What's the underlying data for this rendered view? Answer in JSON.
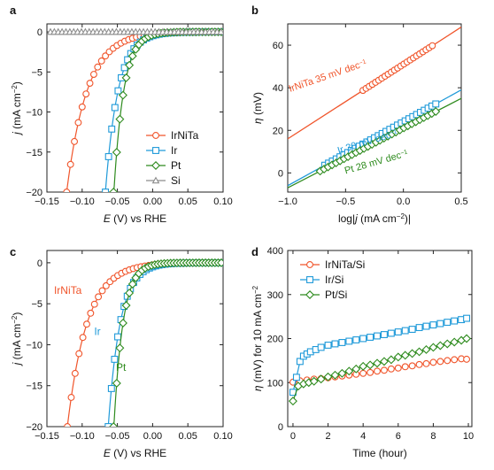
{
  "colors": {
    "irnita": "#f0552b",
    "ir": "#1f9ad9",
    "pt": "#2e8b1e",
    "si": "#8c8c8c"
  },
  "chart_data": [
    {
      "id": "a",
      "type": "line",
      "letter": "a",
      "xlabel_italic": "E",
      "xlabel_rest": " (V) vs RHE",
      "ylabel_italic": "j",
      "ylabel_rest": " (mA cm",
      "ylabel_sup": "−2",
      "ylabel_end": ")",
      "xlim": [
        -0.15,
        0.1
      ],
      "ylim": [
        -20,
        1
      ],
      "xticks": [
        -0.15,
        -0.1,
        -0.05,
        0.0,
        0.05,
        0.1
      ],
      "xtick_labels": [
        "−0.15",
        "−0.10",
        "−0.05",
        "0.00",
        "0.05",
        "0.10"
      ],
      "yticks": [
        0,
        -5,
        -10,
        -15,
        -20
      ],
      "ytick_labels": [
        "0",
        "−5",
        "−10",
        "−15",
        "−20"
      ],
      "legend": [
        "IrNiTa",
        "Ir",
        "Pt",
        "Si"
      ],
      "series": [
        {
          "name": "IrNiTa",
          "color": "irnita",
          "marker": "circle",
          "x0": -0.122,
          "k": 0.029,
          "xmin": -0.122,
          "xmax": 0.1,
          "step": 0.0055
        },
        {
          "name": "Ir",
          "color": "ir",
          "marker": "square",
          "x0": -0.067,
          "k": 0.018,
          "xmin": -0.067,
          "xmax": 0.1,
          "step": 0.0045
        },
        {
          "name": "Pt",
          "color": "pt",
          "marker": "diamond",
          "x0": -0.055,
          "k": 0.014,
          "xmin": -0.0555,
          "xmax": 0.1,
          "step": 0.0045
        },
        {
          "name": "Si",
          "color": "si",
          "marker": "triangle",
          "flat": true,
          "xmin": -0.145,
          "xmax": 0.1,
          "step": 0.0055
        }
      ]
    },
    {
      "id": "b",
      "type": "line",
      "letter": "b",
      "xlabel_pre": "log|",
      "xlabel_italic": "j",
      "xlabel_rest": " (mA cm",
      "xlabel_sup": "−2",
      "xlabel_end": ")|",
      "ylabel_italic": "η",
      "ylabel_rest": " (mV)",
      "xlim": [
        -1.0,
        0.5
      ],
      "ylim": [
        -9,
        70
      ],
      "xticks": [
        -1.0,
        -0.5,
        0.0,
        0.5
      ],
      "xtick_labels": [
        "−1.0",
        "−0.5",
        "0.0",
        "0.5"
      ],
      "yticks": [
        0,
        20,
        40,
        60
      ],
      "ytick_labels": [
        "0",
        "20",
        "40",
        "60"
      ],
      "series": [
        {
          "name": "IrNiTa",
          "color": "irnita",
          "marker": "circle",
          "slope": 35,
          "intercept": 51,
          "fit_range": [
            -1.0,
            0.5
          ],
          "data_range": [
            -0.35,
            0.25
          ],
          "n": 23,
          "label_pre": "IrNiTa  35 mV dec",
          "label_sup": "−1",
          "label_at": [
            -0.98,
            38
          ],
          "label_rot": -19
        },
        {
          "name": "Ir",
          "color": "ir",
          "marker": "square",
          "slope": 30,
          "intercept": 24,
          "fit_range": [
            -1.0,
            0.5
          ],
          "data_range": [
            -0.68,
            0.28
          ],
          "n": 30,
          "label_pre": "Ir  30 mV dec",
          "label_sup": "−1",
          "label_at": [
            -0.56,
            9
          ],
          "label_rot": -17
        },
        {
          "name": "Pt",
          "color": "pt",
          "marker": "diamond",
          "slope": 28,
          "intercept": 21,
          "fit_range": [
            -1.0,
            0.5
          ],
          "data_range": [
            -0.72,
            0.28
          ],
          "n": 30,
          "label_pre": "Pt  28 mV dec",
          "label_sup": "−1",
          "label_at": [
            -0.5,
            -0.5
          ],
          "label_rot": -16
        }
      ]
    },
    {
      "id": "c",
      "type": "line",
      "letter": "c",
      "xlabel_italic": "E",
      "xlabel_rest": " (V) vs RHE",
      "ylabel_italic": "j",
      "ylabel_rest": " (mA cm",
      "ylabel_sup": "−2",
      "ylabel_end": ")",
      "xlim": [
        -0.15,
        0.1
      ],
      "ylim": [
        -20,
        1.5
      ],
      "xticks": [
        -0.15,
        -0.1,
        -0.05,
        0.0,
        0.05,
        0.1
      ],
      "xtick_labels": [
        "−0.15",
        "−0.10",
        "−0.05",
        "0.00",
        "0.05",
        "0.10"
      ],
      "yticks": [
        0,
        -5,
        -10,
        -15,
        -20
      ],
      "ytick_labels": [
        "0",
        "−5",
        "−10",
        "−15",
        "−20"
      ],
      "series": [
        {
          "name": "IrNiTa",
          "color": "irnita",
          "marker": "circle",
          "x0": -0.121,
          "k": 0.028,
          "xmin": -0.121,
          "xmax": 0.1,
          "step": 0.0055,
          "label": "IrNiTa",
          "label_at": [
            -0.14,
            -3.8
          ]
        },
        {
          "name": "Ir",
          "color": "ir",
          "marker": "square",
          "x0": -0.063,
          "k": 0.017,
          "xmin": -0.063,
          "xmax": 0.1,
          "step": 0.0045,
          "label": "Ir",
          "label_at": [
            -0.083,
            -8.8
          ]
        },
        {
          "name": "Pt",
          "color": "pt",
          "marker": "diamond",
          "x0": -0.055,
          "k": 0.013,
          "xmin": -0.0555,
          "xmax": 0.1,
          "step": 0.0045,
          "label": "Pt",
          "label_at": [
            -0.052,
            -13.2
          ]
        }
      ]
    },
    {
      "id": "d",
      "type": "line",
      "letter": "d",
      "xlabel_plain": "Time (hour)",
      "ylabel_italic": "η",
      "ylabel_rest": " (mV) for 10 mA cm",
      "ylabel_sup": "−2",
      "xlim": [
        -0.3,
        10.2
      ],
      "ylim": [
        0,
        400
      ],
      "xticks": [
        0,
        2,
        4,
        6,
        8,
        10
      ],
      "xtick_labels": [
        "0",
        "2",
        "4",
        "6",
        "8",
        "10"
      ],
      "yticks": [
        0,
        100,
        200,
        300,
        400
      ],
      "ytick_labels": [
        "0",
        "100",
        "200",
        "300",
        "400"
      ],
      "legend": [
        "IrNiTa/Si",
        "Ir/Si",
        "Pt/Si"
      ],
      "series": [
        {
          "name": "IrNiTa/Si",
          "color": "irnita",
          "marker": "circle",
          "x": [
            0,
            0.4,
            0.8,
            1.2,
            1.6,
            2,
            2.4,
            2.8,
            3.2,
            3.6,
            4,
            4.4,
            4.8,
            5.2,
            5.6,
            6,
            6.4,
            6.8,
            7.2,
            7.6,
            8,
            8.4,
            8.8,
            9.2,
            9.6,
            9.9
          ],
          "y": [
            101,
            104,
            106,
            108,
            109,
            111,
            113,
            115,
            117,
            119,
            121,
            123,
            126,
            128,
            131,
            133,
            136,
            138,
            141,
            143,
            146,
            148,
            150,
            152,
            154,
            153
          ]
        },
        {
          "name": "Ir/Si",
          "color": "ir",
          "marker": "square",
          "x": [
            0,
            0.2,
            0.4,
            0.6,
            0.8,
            1,
            1.3,
            1.6,
            2,
            2.4,
            2.8,
            3.2,
            3.6,
            4,
            4.4,
            4.8,
            5.2,
            5.6,
            6,
            6.4,
            6.8,
            7.2,
            7.6,
            8,
            8.4,
            8.8,
            9.2,
            9.6,
            9.9
          ],
          "y": [
            78,
            112,
            148,
            160,
            165,
            170,
            175,
            180,
            185,
            188,
            191,
            194,
            197,
            200,
            203,
            206,
            209,
            212,
            215,
            218,
            221,
            225,
            228,
            231,
            234,
            237,
            240,
            243,
            246
          ]
        },
        {
          "name": "Pt/Si",
          "color": "pt",
          "marker": "diamond",
          "x": [
            0,
            0.3,
            0.6,
            0.9,
            1.2,
            1.6,
            2,
            2.4,
            2.8,
            3.2,
            3.6,
            4,
            4.4,
            4.8,
            5.2,
            5.6,
            6,
            6.4,
            6.8,
            7.2,
            7.6,
            8,
            8.4,
            8.8,
            9.2,
            9.6,
            9.9
          ],
          "y": [
            58,
            92,
            97,
            100,
            103,
            108,
            113,
            117,
            121,
            126,
            131,
            137,
            140,
            144,
            148,
            152,
            158,
            162,
            166,
            170,
            175,
            180,
            184,
            188,
            192,
            196,
            200
          ]
        }
      ]
    }
  ]
}
